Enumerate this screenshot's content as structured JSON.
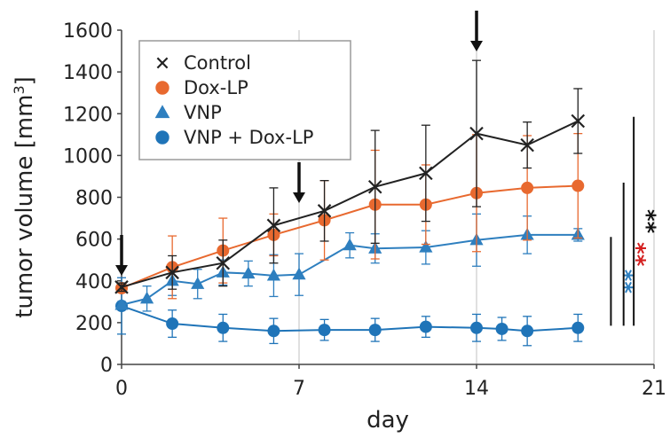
{
  "chart_data": {
    "type": "line",
    "xlabel": "day",
    "ylabel_main": "tumor volume [mm",
    "ylabel_sup": "3",
    "ylabel_close": "]",
    "xlim": [
      0,
      21
    ],
    "ylim": [
      0,
      1600
    ],
    "xticks": [
      0,
      7,
      14,
      21
    ],
    "yticks": [
      0,
      200,
      400,
      600,
      800,
      1000,
      1200,
      1400,
      1600
    ],
    "grid": "vertical lines at x ticks",
    "legend_position": "top-left",
    "series": [
      {
        "name": "Control",
        "color": "#222222",
        "marker": "x",
        "x": [
          0,
          2,
          4,
          6,
          8,
          10,
          12,
          14,
          16,
          18
        ],
        "y": [
          370,
          440,
          485,
          665,
          735,
          850,
          915,
          1105,
          1050,
          1165
        ],
        "err": [
          20,
          80,
          110,
          180,
          145,
          270,
          230,
          350,
          110,
          155
        ]
      },
      {
        "name": "Dox-LP",
        "color": "#e8692f",
        "marker": "circle",
        "x": [
          0,
          2,
          4,
          6,
          8,
          10,
          12,
          14,
          16,
          18
        ],
        "y": [
          365,
          465,
          545,
          620,
          690,
          765,
          765,
          820,
          845,
          855
        ],
        "err": [
          20,
          150,
          155,
          100,
          190,
          260,
          190,
          280,
          250,
          250
        ]
      },
      {
        "name": "VNP",
        "color": "#2e7fbf",
        "marker": "triangle",
        "x": [
          0,
          1,
          2,
          3,
          4,
          5,
          6,
          7,
          9,
          10,
          12,
          14,
          16,
          18
        ],
        "y": [
          285,
          315,
          400,
          385,
          440,
          435,
          425,
          430,
          570,
          555,
          560,
          595,
          620,
          620
        ],
        "err": [
          15,
          60,
          70,
          70,
          60,
          60,
          100,
          100,
          60,
          70,
          80,
          125,
          90,
          30
        ]
      },
      {
        "name": "VNP + Dox-LP",
        "color": "#1f74b8",
        "marker": "circle",
        "x": [
          0,
          2,
          4,
          6,
          8,
          10,
          12,
          14,
          15,
          16,
          18
        ],
        "y": [
          280,
          195,
          175,
          160,
          165,
          165,
          180,
          175,
          170,
          160,
          175
        ],
        "err": [
          135,
          65,
          65,
          60,
          50,
          55,
          50,
          65,
          55,
          70,
          65
        ]
      }
    ],
    "arrows_days": [
      0,
      7,
      14
    ],
    "significance": [
      {
        "label": "**",
        "color": "#2e7fbf",
        "x": 19.3,
        "y_low": 185,
        "y_high": 610
      },
      {
        "label": "**",
        "color": "#d42020",
        "x": 19.8,
        "y_low": 185,
        "y_high": 870
      },
      {
        "label": "**",
        "color": "#111111",
        "x": 20.2,
        "y_low": 185,
        "y_high": 1185
      }
    ]
  }
}
